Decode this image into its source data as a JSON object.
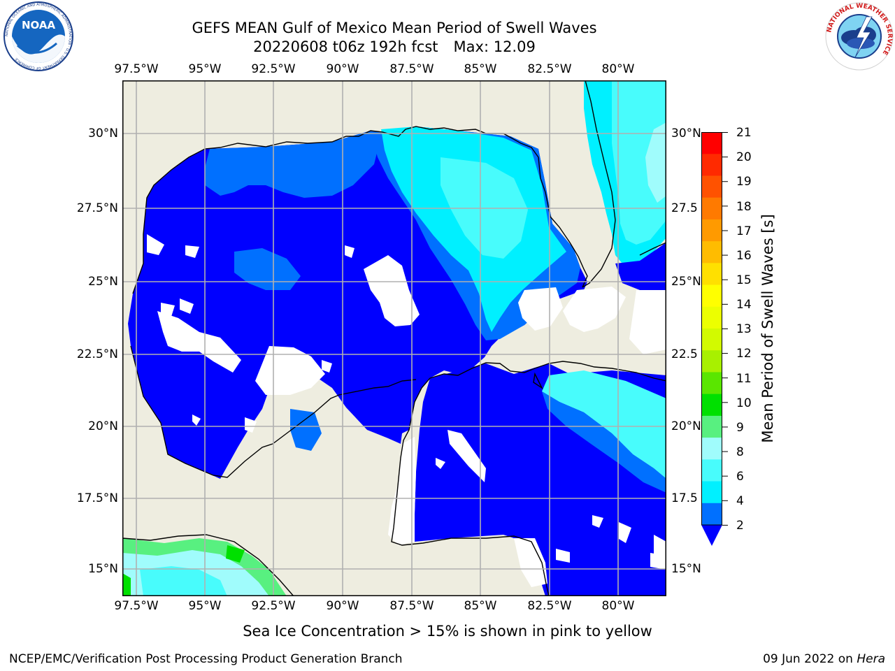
{
  "header": {
    "title": "GEFS MEAN Gulf of Mexico Mean Period of Swell Waves",
    "run_info": "20220608 t06z 192h fcst",
    "max_label": "Max: 12.09"
  },
  "logos": {
    "noaa_text": "NOAA",
    "noaa_ring_text": "NATIONAL OCEANIC AND ATMOSPHERIC ADMINISTRATION · U.S. DEPARTMENT OF COMMERCE",
    "nws_ring_text": "NATIONAL WEATHER SERVICE"
  },
  "map": {
    "longitude_ticks": [
      "97.5°W",
      "95°W",
      "92.5°W",
      "90°W",
      "87.5°W",
      "85°W",
      "82.5°W",
      "80°W"
    ],
    "latitude_ticks_left": [
      "30°N",
      "27.5°N",
      "25°N",
      "22.5°N",
      "20°N",
      "17.5°N",
      "15°N"
    ],
    "latitude_ticks_right": [
      "30°N",
      "27.5",
      "25°N",
      "22.5",
      "20°N",
      "17.5",
      "15°N"
    ],
    "colors": {
      "land": "#eeede0",
      "no_data": "#ffffff",
      "grid": "#b0b0b0",
      "coast": "#000000"
    }
  },
  "colorbar": {
    "title": "Mean Period of Swell Waves [s]",
    "labels": [
      "21",
      "20",
      "19",
      "18",
      "17",
      "16",
      "15",
      "14",
      "13",
      "12",
      "11",
      "10",
      "9",
      "8",
      "6",
      "4",
      "2"
    ],
    "colors_top_to_bottom": [
      "#ff0000",
      "#ff2a00",
      "#ff5200",
      "#ff7a00",
      "#ff9a00",
      "#ffbc00",
      "#ffe000",
      "#ffff00",
      "#ecff00",
      "#d2fa00",
      "#a8f000",
      "#5ae600",
      "#00e000",
      "#58f080",
      "#a0fcfc",
      "#48fcfc",
      "#00f0ff",
      "#0070ff"
    ],
    "extend_color": "#0000ff"
  },
  "footer": {
    "note": "Sea Ice Concentration > 15% is shown in pink to yellow",
    "credit": "NCEP/EMC/Verification Post Processing Product Generation Branch",
    "date": "09 Jun 2022",
    "on_word": "on",
    "machine": "Hera"
  }
}
